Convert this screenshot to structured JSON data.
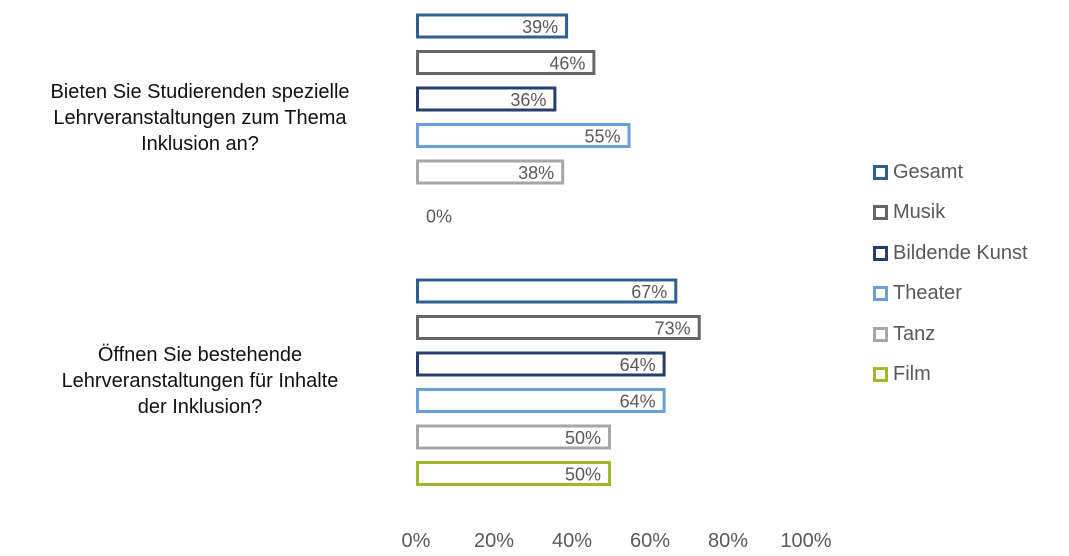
{
  "chart_data": {
    "type": "bar",
    "orientation": "horizontal",
    "categories": [
      "Bieten Sie Studierenden spezielle\nLehrveranstaltungen zum Thema\nInklusion an?",
      "Öffnen Sie bestehende\nLehrveranstaltungen für Inhalte\nder Inklusion?"
    ],
    "series": [
      {
        "name": "Gesamt",
        "color": "#2e5f8f",
        "values": [
          39,
          67
        ],
        "labels": [
          "39%",
          "67%"
        ]
      },
      {
        "name": "Musik",
        "color": "#666666",
        "values": [
          46,
          73
        ],
        "labels": [
          "46%",
          "73%"
        ]
      },
      {
        "name": "Bildende Kunst",
        "color": "#263e6e",
        "values": [
          36,
          64
        ],
        "labels": [
          "36%",
          "64%"
        ]
      },
      {
        "name": "Theater",
        "color": "#6a9fd8",
        "values": [
          55,
          64
        ],
        "labels": [
          "55%",
          "64%"
        ]
      },
      {
        "name": "Tanz",
        "color": "#a6a6a6",
        "values": [
          38,
          50
        ],
        "labels": [
          "38%",
          "50%"
        ]
      },
      {
        "name": "Film",
        "color": "#9bbb2a",
        "values": [
          0,
          50
        ],
        "labels": [
          "0%",
          "50%"
        ]
      }
    ],
    "xlim": [
      0,
      100
    ],
    "xticks": [
      "0%",
      "20%",
      "40%",
      "60%",
      "80%",
      "100%"
    ],
    "bar_style": "outline",
    "grid": false,
    "legend_position": "right"
  }
}
